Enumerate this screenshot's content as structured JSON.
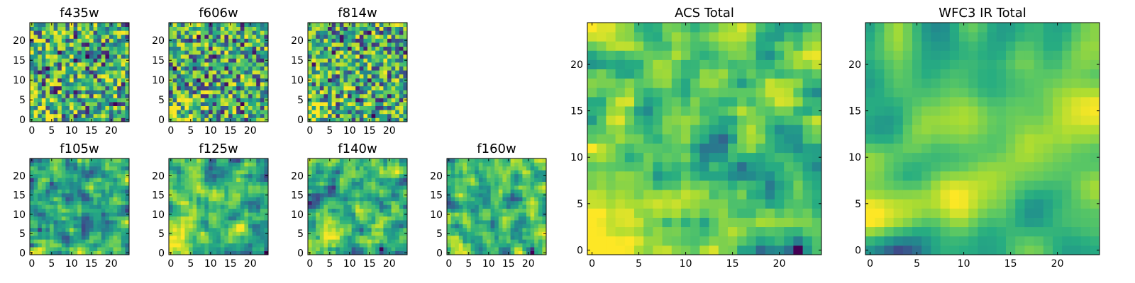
{
  "chart_data": [
    {
      "type": "heatmap",
      "title": "f435w",
      "grid": "25x25",
      "cmap": "viridis",
      "xticks": [
        "0",
        "5",
        "10",
        "15",
        "20"
      ],
      "yticks": [
        "0",
        "5",
        "10",
        "15",
        "20"
      ],
      "seed": 11,
      "bias": 0.55,
      "smooth": 0
    },
    {
      "type": "heatmap",
      "title": "f606w",
      "grid": "25x25",
      "cmap": "viridis",
      "xticks": [
        "0",
        "5",
        "10",
        "15",
        "20"
      ],
      "yticks": [
        "0",
        "5",
        "10",
        "15",
        "20"
      ],
      "seed": 23,
      "bias": 0.62,
      "smooth": 0
    },
    {
      "type": "heatmap",
      "title": "f814w",
      "grid": "25x25",
      "cmap": "viridis",
      "xticks": [
        "0",
        "5",
        "10",
        "15",
        "20"
      ],
      "yticks": [
        "0",
        "5",
        "10",
        "15",
        "20"
      ],
      "seed": 37,
      "bias": 0.6,
      "smooth": 0
    },
    {
      "type": "heatmap",
      "title": "f105w",
      "grid": "25x25",
      "cmap": "viridis",
      "xticks": [
        "0",
        "5",
        "10",
        "15",
        "20"
      ],
      "yticks": [
        "0",
        "5",
        "10",
        "15",
        "20"
      ],
      "seed": 41,
      "bias": 0.6,
      "smooth": 1
    },
    {
      "type": "heatmap",
      "title": "f125w",
      "grid": "25x25",
      "cmap": "viridis",
      "xticks": [
        "0",
        "5",
        "10",
        "15",
        "20"
      ],
      "yticks": [
        "0",
        "5",
        "10",
        "15",
        "20"
      ],
      "seed": 53,
      "bias": 0.64,
      "smooth": 1
    },
    {
      "type": "heatmap",
      "title": "f140w",
      "grid": "25x25",
      "cmap": "viridis",
      "xticks": [
        "0",
        "5",
        "10",
        "15",
        "20"
      ],
      "yticks": [
        "0",
        "5",
        "10",
        "15",
        "20"
      ],
      "seed": 67,
      "bias": 0.58,
      "smooth": 1
    },
    {
      "type": "heatmap",
      "title": "f160w",
      "grid": "25x25",
      "cmap": "viridis",
      "xticks": [
        "0",
        "5",
        "10",
        "15",
        "20"
      ],
      "yticks": [
        "0",
        "5",
        "10",
        "15",
        "20"
      ],
      "seed": 79,
      "bias": 0.6,
      "smooth": 1
    },
    {
      "type": "heatmap",
      "title": "ACS Total",
      "grid": "25x25",
      "cmap": "viridis",
      "xticks": [
        "0",
        "5",
        "10",
        "15",
        "20"
      ],
      "yticks": [
        "0",
        "5",
        "10",
        "15",
        "20"
      ],
      "seed": 83,
      "bias": 0.65,
      "smooth": 1
    },
    {
      "type": "heatmap",
      "title": "WFC3 IR Total",
      "grid": "25x25",
      "cmap": "viridis",
      "xticks": [
        "0",
        "5",
        "10",
        "15",
        "20"
      ],
      "yticks": [
        "0",
        "5",
        "10",
        "15",
        "20"
      ],
      "seed": 97,
      "bias": 0.55,
      "smooth": 3
    }
  ]
}
